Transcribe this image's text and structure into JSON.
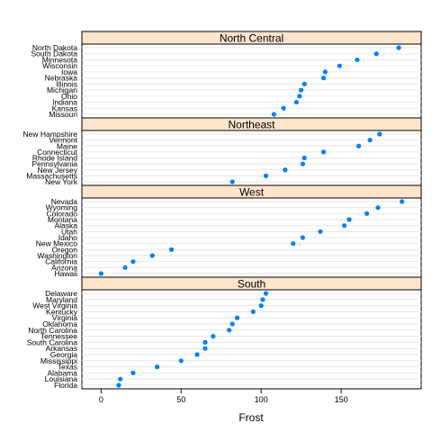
{
  "chart_data": {
    "type": "scatter",
    "xlabel": "Frost",
    "xlim": [
      -12,
      200
    ],
    "x_ticks": [
      0,
      50,
      100,
      150
    ],
    "point_color": "#0080ff",
    "strip_color": "#ffe5cc",
    "grid": true,
    "panels": [
      {
        "strip": "North Central",
        "states": [
          "North Dakota",
          "South Dakota",
          "Minnesota",
          "Wisconsin",
          "Iowa",
          "Nebraska",
          "Illinois",
          "Michigan",
          "Ohio",
          "Indiana",
          "Kansas",
          "Missouri"
        ],
        "values": [
          186,
          172,
          160,
          149,
          140,
          139,
          127,
          125,
          124,
          122,
          114,
          108
        ]
      },
      {
        "strip": "Northeast",
        "states": [
          "New Hampshire",
          "Vermont",
          "Maine",
          "Connecticut",
          "Rhode Island",
          "Pennsylvania",
          "New Jersey",
          "Massachusetts",
          "New York"
        ],
        "values": [
          174,
          168,
          161,
          139,
          127,
          126,
          115,
          103,
          82
        ]
      },
      {
        "strip": "West",
        "states": [
          "Nevada",
          "Wyoming",
          "Colorado",
          "Montana",
          "Alaska",
          "Utah",
          "Idaho",
          "New Mexico",
          "Oregon",
          "Washington",
          "California",
          "Arizona",
          "Hawaii"
        ],
        "values": [
          188,
          173,
          166,
          155,
          152,
          137,
          126,
          120,
          44,
          32,
          20,
          15,
          0
        ]
      },
      {
        "strip": "South",
        "states": [
          "Delaware",
          "Maryland",
          "West Virginia",
          "Kentucky",
          "Virginia",
          "Oklahoma",
          "North Carolina",
          "Tennessee",
          "South Carolina",
          "Arkansas",
          "Georgia",
          "Mississippi",
          "Texas",
          "Alabama",
          "Louisiana",
          "Florida"
        ],
        "values": [
          103,
          101,
          100,
          95,
          85,
          82,
          80,
          70,
          65,
          65,
          60,
          50,
          35,
          20,
          12,
          11
        ]
      }
    ]
  }
}
